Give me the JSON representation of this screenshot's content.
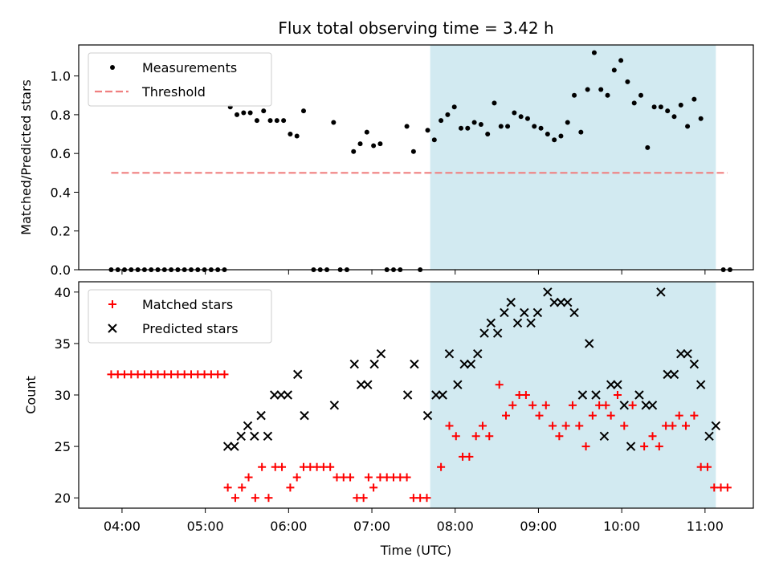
{
  "chart_data": [
    {
      "type": "scatter",
      "title": "Flux total observing time = 3.42 h",
      "xlabel": "",
      "ylabel": "Matched/Predicted stars",
      "ylim": [
        0,
        1.16
      ],
      "yticks": [
        "0.0",
        "0.2",
        "0.4",
        "0.6",
        "0.8",
        "1.0"
      ],
      "ytick_values": [
        0,
        0.2,
        0.4,
        0.6,
        0.8,
        1.0
      ],
      "x_range_hours": [
        3.48,
        11.58
      ],
      "shade_hours": [
        7.7,
        11.13
      ],
      "shade_color": "#add8e6",
      "legend_position": "upper left",
      "series": [
        {
          "name": "Measurements",
          "color": "#000000",
          "marker": "dot",
          "points": [
            [
              3.87,
              0
            ],
            [
              3.95,
              0
            ],
            [
              4.03,
              0
            ],
            [
              4.11,
              0
            ],
            [
              4.19,
              0
            ],
            [
              4.27,
              0
            ],
            [
              4.35,
              0
            ],
            [
              4.43,
              0
            ],
            [
              4.51,
              0
            ],
            [
              4.59,
              0
            ],
            [
              4.67,
              0
            ],
            [
              4.75,
              0
            ],
            [
              4.83,
              0
            ],
            [
              4.91,
              0
            ],
            [
              4.99,
              0
            ],
            [
              5.07,
              0
            ],
            [
              5.15,
              0
            ],
            [
              5.23,
              0
            ],
            [
              5.3,
              0.84
            ],
            [
              5.38,
              0.8
            ],
            [
              5.46,
              0.81
            ],
            [
              5.54,
              0.81
            ],
            [
              5.62,
              0.77
            ],
            [
              5.7,
              0.82
            ],
            [
              5.78,
              0.77
            ],
            [
              5.86,
              0.77
            ],
            [
              5.94,
              0.77
            ],
            [
              6.02,
              0.7
            ],
            [
              6.1,
              0.69
            ],
            [
              6.18,
              0.82
            ],
            [
              6.3,
              0
            ],
            [
              6.38,
              0
            ],
            [
              6.46,
              0
            ],
            [
              6.54,
              0.76
            ],
            [
              6.62,
              0
            ],
            [
              6.7,
              0
            ],
            [
              6.78,
              0.61
            ],
            [
              6.86,
              0.65
            ],
            [
              6.94,
              0.71
            ],
            [
              7.02,
              0.64
            ],
            [
              7.1,
              0.65
            ],
            [
              7.18,
              0
            ],
            [
              7.26,
              0
            ],
            [
              7.34,
              0
            ],
            [
              7.42,
              0.74
            ],
            [
              7.5,
              0.61
            ],
            [
              7.58,
              0
            ],
            [
              7.67,
              0.72
            ],
            [
              7.75,
              0.67
            ],
            [
              7.83,
              0.77
            ],
            [
              7.91,
              0.8
            ],
            [
              7.99,
              0.84
            ],
            [
              8.07,
              0.73
            ],
            [
              8.15,
              0.73
            ],
            [
              8.23,
              0.76
            ],
            [
              8.31,
              0.75
            ],
            [
              8.39,
              0.7
            ],
            [
              8.47,
              0.86
            ],
            [
              8.55,
              0.74
            ],
            [
              8.63,
              0.74
            ],
            [
              8.71,
              0.81
            ],
            [
              8.79,
              0.79
            ],
            [
              8.87,
              0.78
            ],
            [
              8.95,
              0.74
            ],
            [
              9.03,
              0.73
            ],
            [
              9.11,
              0.7
            ],
            [
              9.19,
              0.67
            ],
            [
              9.27,
              0.69
            ],
            [
              9.35,
              0.76
            ],
            [
              9.43,
              0.9
            ],
            [
              9.51,
              0.71
            ],
            [
              9.59,
              0.93
            ],
            [
              9.67,
              1.12
            ],
            [
              9.75,
              0.93
            ],
            [
              9.83,
              0.9
            ],
            [
              9.91,
              1.03
            ],
            [
              9.99,
              1.08
            ],
            [
              10.07,
              0.97
            ],
            [
              10.15,
              0.86
            ],
            [
              10.23,
              0.9
            ],
            [
              10.31,
              0.63
            ],
            [
              10.39,
              0.84
            ],
            [
              10.47,
              0.84
            ],
            [
              10.55,
              0.82
            ],
            [
              10.63,
              0.79
            ],
            [
              10.71,
              0.85
            ],
            [
              10.79,
              0.74
            ],
            [
              10.87,
              0.88
            ],
            [
              10.95,
              0.78
            ],
            [
              11.22,
              0
            ],
            [
              11.3,
              0
            ]
          ]
        },
        {
          "name": "Threshold",
          "color": "#f08080",
          "line_style": "dashed",
          "x": [
            3.87,
            11.27
          ],
          "y": [
            0.5,
            0.5
          ]
        }
      ]
    },
    {
      "type": "scatter",
      "title": "",
      "xlabel": "Time (UTC)",
      "ylabel": "Count",
      "ylim": [
        19,
        41
      ],
      "yticks": [
        "20",
        "25",
        "30",
        "35",
        "40"
      ],
      "ytick_values": [
        20,
        25,
        30,
        35,
        40
      ],
      "xticks": [
        "04:00",
        "05:00",
        "06:00",
        "07:00",
        "08:00",
        "09:00",
        "10:00",
        "11:00"
      ],
      "xtick_hours": [
        4,
        5,
        6,
        7,
        8,
        9,
        10,
        11
      ],
      "x_range_hours": [
        3.48,
        11.58
      ],
      "shade_hours": [
        7.7,
        11.13
      ],
      "shade_color": "#add8e6",
      "legend_position": "upper left",
      "series": [
        {
          "name": "Matched stars",
          "color": "#ff0000",
          "marker": "plus",
          "points": [
            [
              3.87,
              32
            ],
            [
              3.95,
              32
            ],
            [
              4.03,
              32
            ],
            [
              4.11,
              32
            ],
            [
              4.19,
              32
            ],
            [
              4.27,
              32
            ],
            [
              4.35,
              32
            ],
            [
              4.43,
              32
            ],
            [
              4.51,
              32
            ],
            [
              4.59,
              32
            ],
            [
              4.67,
              32
            ],
            [
              4.75,
              32
            ],
            [
              4.83,
              32
            ],
            [
              4.91,
              32
            ],
            [
              4.99,
              32
            ],
            [
              5.07,
              32
            ],
            [
              5.15,
              32
            ],
            [
              5.23,
              32
            ],
            [
              5.27,
              21
            ],
            [
              5.36,
              20
            ],
            [
              5.44,
              21
            ],
            [
              5.52,
              22
            ],
            [
              5.6,
              20
            ],
            [
              5.68,
              23
            ],
            [
              5.76,
              20
            ],
            [
              5.84,
              23
            ],
            [
              5.92,
              23
            ],
            [
              6.02,
              21
            ],
            [
              6.1,
              22
            ],
            [
              6.18,
              23
            ],
            [
              6.26,
              23
            ],
            [
              6.34,
              23
            ],
            [
              6.42,
              23
            ],
            [
              6.5,
              23
            ],
            [
              6.58,
              22
            ],
            [
              6.66,
              22
            ],
            [
              6.74,
              22
            ],
            [
              6.82,
              20
            ],
            [
              6.9,
              20
            ],
            [
              6.96,
              22
            ],
            [
              7.02,
              21
            ],
            [
              7.1,
              22
            ],
            [
              7.18,
              22
            ],
            [
              7.26,
              22
            ],
            [
              7.34,
              22
            ],
            [
              7.42,
              22
            ],
            [
              7.5,
              20
            ],
            [
              7.58,
              20
            ],
            [
              7.66,
              20
            ],
            [
              7.83,
              23
            ],
            [
              7.93,
              27
            ],
            [
              8.01,
              26
            ],
            [
              8.09,
              24
            ],
            [
              8.17,
              24
            ],
            [
              8.25,
              26
            ],
            [
              8.33,
              27
            ],
            [
              8.41,
              26
            ],
            [
              8.53,
              31
            ],
            [
              8.61,
              28
            ],
            [
              8.69,
              29
            ],
            [
              8.77,
              30
            ],
            [
              8.85,
              30
            ],
            [
              8.93,
              29
            ],
            [
              9.01,
              28
            ],
            [
              9.09,
              29
            ],
            [
              9.17,
              27
            ],
            [
              9.25,
              26
            ],
            [
              9.33,
              27
            ],
            [
              9.41,
              29
            ],
            [
              9.49,
              27
            ],
            [
              9.57,
              25
            ],
            [
              9.65,
              28
            ],
            [
              9.73,
              29
            ],
            [
              9.81,
              29
            ],
            [
              9.87,
              28
            ],
            [
              9.95,
              30
            ],
            [
              10.03,
              27
            ],
            [
              10.13,
              29
            ],
            [
              10.27,
              25
            ],
            [
              10.37,
              26
            ],
            [
              10.45,
              25
            ],
            [
              10.53,
              27
            ],
            [
              10.61,
              27
            ],
            [
              10.69,
              28
            ],
            [
              10.77,
              27
            ],
            [
              10.87,
              28
            ],
            [
              10.95,
              23
            ],
            [
              11.03,
              23
            ],
            [
              11.11,
              21
            ],
            [
              11.19,
              21
            ],
            [
              11.27,
              21
            ]
          ]
        },
        {
          "name": "Predicted stars",
          "color": "#000000",
          "marker": "x",
          "points": [
            [
              5.27,
              25
            ],
            [
              5.35,
              25
            ],
            [
              5.43,
              26
            ],
            [
              5.51,
              27
            ],
            [
              5.59,
              26
            ],
            [
              5.67,
              28
            ],
            [
              5.75,
              26
            ],
            [
              5.83,
              30
            ],
            [
              5.91,
              30
            ],
            [
              5.99,
              30
            ],
            [
              6.11,
              32
            ],
            [
              6.19,
              28
            ],
            [
              6.55,
              29
            ],
            [
              6.79,
              33
            ],
            [
              6.87,
              31
            ],
            [
              6.95,
              31
            ],
            [
              7.03,
              33
            ],
            [
              7.11,
              34
            ],
            [
              7.43,
              30
            ],
            [
              7.51,
              33
            ],
            [
              7.67,
              28
            ],
            [
              7.77,
              30
            ],
            [
              7.85,
              30
            ],
            [
              7.93,
              34
            ],
            [
              8.03,
              31
            ],
            [
              8.11,
              33
            ],
            [
              8.19,
              33
            ],
            [
              8.27,
              34
            ],
            [
              8.35,
              36
            ],
            [
              8.43,
              37
            ],
            [
              8.51,
              36
            ],
            [
              8.59,
              38
            ],
            [
              8.67,
              39
            ],
            [
              8.75,
              37
            ],
            [
              8.83,
              38
            ],
            [
              8.91,
              37
            ],
            [
              8.99,
              38
            ],
            [
              9.11,
              40
            ],
            [
              9.19,
              39
            ],
            [
              9.27,
              39
            ],
            [
              9.35,
              39
            ],
            [
              9.43,
              38
            ],
            [
              9.53,
              30
            ],
            [
              9.61,
              35
            ],
            [
              9.69,
              30
            ],
            [
              9.79,
              26
            ],
            [
              9.87,
              31
            ],
            [
              9.95,
              31
            ],
            [
              10.03,
              29
            ],
            [
              10.11,
              25
            ],
            [
              10.21,
              30
            ],
            [
              10.29,
              29
            ],
            [
              10.37,
              29
            ],
            [
              10.47,
              40
            ],
            [
              10.55,
              32
            ],
            [
              10.63,
              32
            ],
            [
              10.71,
              34
            ],
            [
              10.79,
              34
            ],
            [
              10.87,
              33
            ],
            [
              10.95,
              31
            ],
            [
              11.05,
              26
            ],
            [
              11.13,
              27
            ]
          ]
        }
      ]
    }
  ]
}
